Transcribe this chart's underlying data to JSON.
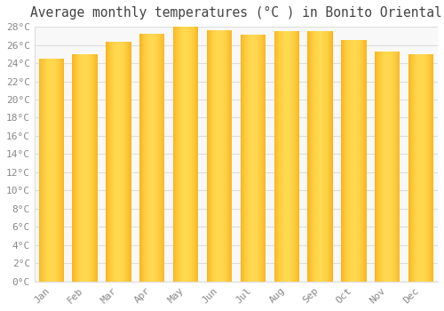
{
  "title": "Average monthly temperatures (°C ) in Bonito Oriental",
  "months": [
    "Jan",
    "Feb",
    "Mar",
    "Apr",
    "May",
    "Jun",
    "Jul",
    "Aug",
    "Sep",
    "Oct",
    "Nov",
    "Dec"
  ],
  "temperatures": [
    24.5,
    25.0,
    26.3,
    27.2,
    28.0,
    27.6,
    27.1,
    27.5,
    27.5,
    26.5,
    25.3,
    25.0
  ],
  "bar_color_edge": "#F5A000",
  "bar_color_center": "#FFD850",
  "ylim_max": 28,
  "ytick_step": 2,
  "background_color": "#FFFFFF",
  "plot_bg_color": "#F8F8F8",
  "grid_color": "#DDDDDD",
  "title_fontsize": 10.5,
  "tick_fontsize": 8,
  "title_color": "#444444",
  "tick_color": "#888888",
  "bar_width": 0.75
}
